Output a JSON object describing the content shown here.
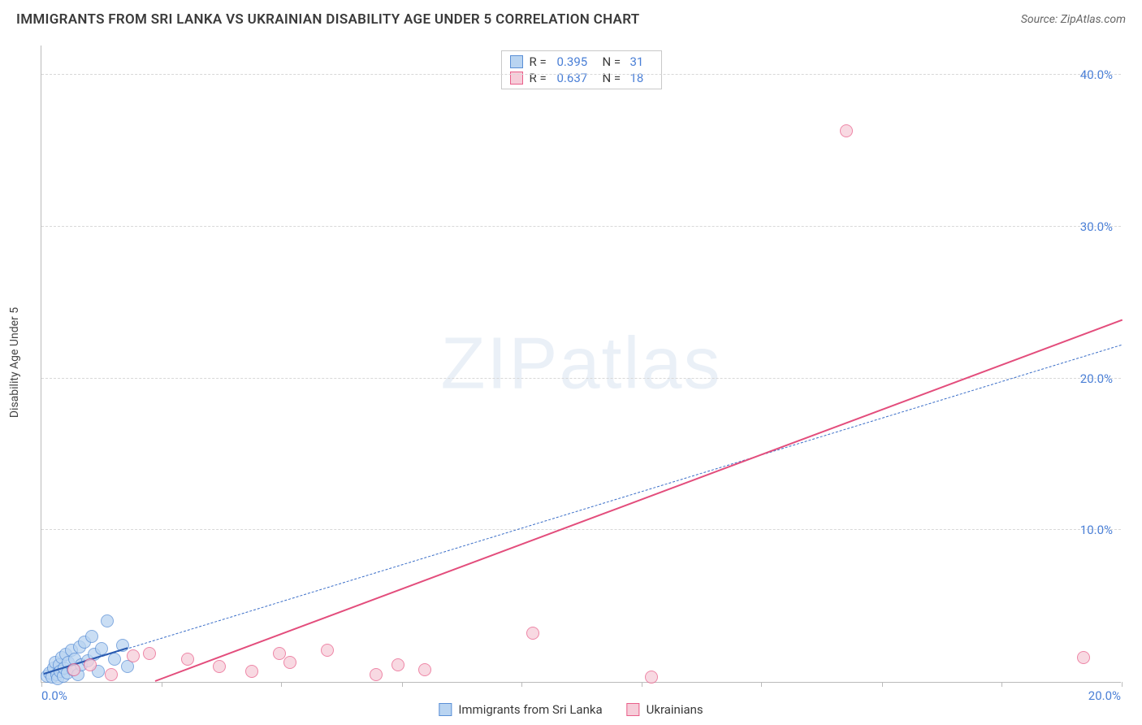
{
  "header": {
    "title": "IMMIGRANTS FROM SRI LANKA VS UKRAINIAN DISABILITY AGE UNDER 5 CORRELATION CHART",
    "source_prefix": "Source: ",
    "source_name": "ZipAtlas.com"
  },
  "watermark": {
    "part1": "ZIP",
    "part2": "atlas"
  },
  "chart": {
    "type": "scatter",
    "ylabel": "Disability Age Under 5",
    "xlim": [
      0,
      20
    ],
    "ylim": [
      0,
      42
    ],
    "x_origin_label": "0.0%",
    "x_end_label": "20.0%",
    "x_ticks": [
      0,
      2.22,
      4.44,
      6.67,
      8.89,
      11.11,
      13.33,
      15.56,
      17.78,
      20
    ],
    "y_ticks": [
      {
        "v": 10,
        "label": "10.0%"
      },
      {
        "v": 20,
        "label": "20.0%"
      },
      {
        "v": 30,
        "label": "30.0%"
      },
      {
        "v": 40,
        "label": "40.0%"
      }
    ],
    "background_color": "#ffffff",
    "grid_color": "#d8d8d8",
    "axis_color": "#bbbbbb",
    "tick_label_color": "#4a7fd6",
    "label_fontsize": 14,
    "marker_radius": 8,
    "marker_border_width": 1.5,
    "series": [
      {
        "key": "sri_lanka",
        "label": "Immigrants from Sri Lanka",
        "fill": "#b9d4f1",
        "stroke": "#5a8fd6",
        "swatch_fill": "#b9d4f1",
        "swatch_stroke": "#5a8fd6",
        "r_value": "0.395",
        "n_value": "31",
        "trend": {
          "x0": 0.05,
          "y0": 0.5,
          "x1": 20,
          "y1": 22.2,
          "color": "#3c6fc8",
          "width": 1.5,
          "style": "dashed"
        },
        "trend_short": {
          "x0": 0.05,
          "y0": 0.5,
          "x1": 1.6,
          "y1": 2.2,
          "color": "#2a5bb0",
          "width": 2.5,
          "style": "solid"
        },
        "points": [
          [
            0.1,
            0.4
          ],
          [
            0.15,
            0.6
          ],
          [
            0.2,
            0.3
          ],
          [
            0.22,
            0.9
          ],
          [
            0.25,
            1.3
          ],
          [
            0.28,
            0.5
          ],
          [
            0.3,
            0.2
          ],
          [
            0.33,
            1.1
          ],
          [
            0.35,
            0.7
          ],
          [
            0.38,
            1.6
          ],
          [
            0.4,
            0.4
          ],
          [
            0.42,
            0.9
          ],
          [
            0.45,
            1.8
          ],
          [
            0.48,
            0.6
          ],
          [
            0.5,
            1.3
          ],
          [
            0.55,
            2.1
          ],
          [
            0.58,
            0.8
          ],
          [
            0.62,
            1.5
          ],
          [
            0.67,
            0.5
          ],
          [
            0.7,
            2.3
          ],
          [
            0.74,
            1.1
          ],
          [
            0.8,
            2.6
          ],
          [
            0.85,
            1.4
          ],
          [
            0.93,
            3.0
          ],
          [
            0.98,
            1.8
          ],
          [
            1.05,
            0.7
          ],
          [
            1.12,
            2.2
          ],
          [
            1.22,
            4.0
          ],
          [
            1.35,
            1.5
          ],
          [
            1.5,
            2.4
          ],
          [
            1.6,
            1.0
          ]
        ]
      },
      {
        "key": "ukrainians",
        "label": "Ukrainians",
        "fill": "#f6cdd9",
        "stroke": "#e95f8a",
        "swatch_fill": "#f6cdd9",
        "swatch_stroke": "#e95f8a",
        "r_value": "0.637",
        "n_value": "18",
        "trend": {
          "x0": 2.1,
          "y0": 0.0,
          "x1": 20,
          "y1": 23.8,
          "color": "#e34d7c",
          "width": 2.5,
          "style": "solid"
        },
        "points": [
          [
            0.6,
            0.8
          ],
          [
            0.9,
            1.1
          ],
          [
            1.3,
            0.5
          ],
          [
            1.7,
            1.7
          ],
          [
            2.0,
            1.9
          ],
          [
            2.7,
            1.5
          ],
          [
            3.3,
            1.0
          ],
          [
            3.9,
            0.7
          ],
          [
            4.4,
            1.9
          ],
          [
            4.6,
            1.3
          ],
          [
            5.3,
            2.1
          ],
          [
            6.2,
            0.5
          ],
          [
            6.6,
            1.1
          ],
          [
            7.1,
            0.8
          ],
          [
            9.1,
            3.2
          ],
          [
            11.3,
            0.3
          ],
          [
            14.9,
            36.3
          ],
          [
            19.3,
            1.6
          ]
        ]
      }
    ],
    "stats_labels": {
      "r": "R =",
      "n": "N ="
    }
  }
}
